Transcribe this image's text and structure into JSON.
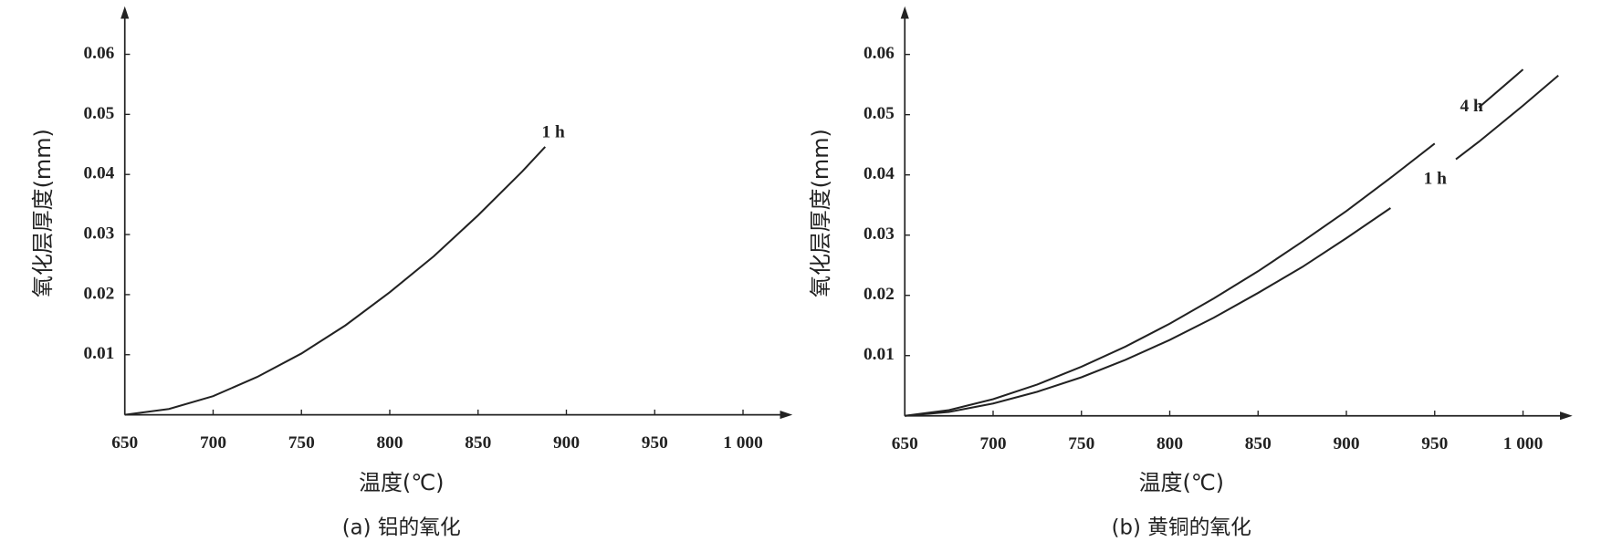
{
  "chart_data": [
    {
      "type": "line",
      "title": "(a) 铝的氧化",
      "xlabel": "温度(℃)",
      "ylabel": "氧化层厚度(mm)",
      "x": [
        650,
        675,
        700,
        725,
        750,
        775,
        800,
        825,
        850,
        875,
        888
      ],
      "series": [
        {
          "name": "1 h",
          "color": "#222222",
          "values": [
            0,
            0.00096,
            0.0031,
            0.0063,
            0.0102,
            0.0149,
            0.0204,
            0.0264,
            0.0332,
            0.0405,
            0.0446
          ]
        }
      ],
      "xlim": [
        650,
        1028
      ],
      "ylim": [
        0,
        0.068
      ],
      "xticks": [
        650,
        700,
        750,
        800,
        850,
        900,
        950,
        {
          "value": 1000,
          "label": "1 000"
        }
      ],
      "yticks": [
        0.01,
        0.02,
        0.03,
        0.04,
        0.05,
        0.06
      ]
    },
    {
      "type": "line",
      "title": "(b) 黄铜的氧化",
      "xlabel": "温度(℃)",
      "ylabel": "氧化层厚度(mm)",
      "x": [
        650,
        675,
        700,
        725,
        750,
        775,
        800,
        825,
        850,
        875,
        900,
        925,
        950,
        962,
        975,
        1000,
        1020
      ],
      "series": [
        {
          "name": "4 h",
          "color": "#222222",
          "values": [
            0,
            0.00094,
            0.00276,
            0.0052,
            0.00815,
            0.0115,
            0.0153,
            0.0195,
            0.024,
            0.0289,
            0.034,
            0.0395,
            0.0452,
            null,
            0.0512,
            0.0575,
            null
          ]
        },
        {
          "name": "1 h",
          "color": "#222222",
          "values": [
            0,
            0.00064,
            0.00204,
            0.004,
            0.0064,
            0.0093,
            0.0126,
            0.0163,
            0.0204,
            0.0247,
            0.0295,
            0.0345,
            null,
            0.0426,
            0.0455,
            0.0515,
            0.0565
          ]
        }
      ],
      "xlim": [
        650,
        1028
      ],
      "ylim": [
        0,
        0.068
      ],
      "xticks": [
        650,
        700,
        750,
        800,
        850,
        900,
        950,
        {
          "value": 1000,
          "label": "1 000"
        }
      ],
      "yticks": [
        0.01,
        0.02,
        0.03,
        0.04,
        0.05,
        0.06
      ]
    }
  ]
}
